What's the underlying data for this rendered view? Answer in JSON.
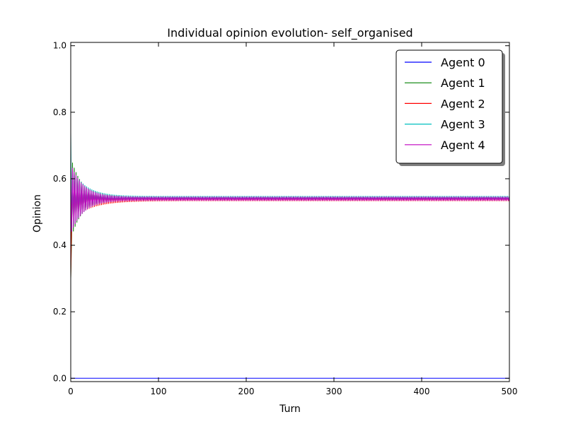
{
  "chart_data": {
    "type": "line",
    "title": "Individual opinion evolution- self_organised",
    "xlabel": "Turn",
    "ylabel": "Opinion",
    "xlim": [
      0,
      500
    ],
    "ylim": [
      -0.01,
      1.01
    ],
    "xticks": [
      0,
      100,
      200,
      300,
      400,
      500
    ],
    "yticks": [
      0.0,
      0.2,
      0.4,
      0.6,
      0.8,
      1.0
    ],
    "grid": false,
    "legend_position": "top-right",
    "series": [
      {
        "name": "Agent 0",
        "color": "#0000ff",
        "pattern": "constant",
        "start": 0.0,
        "steady": 0.0,
        "amp": 0.0,
        "decay": 1,
        "period": 2
      },
      {
        "name": "Agent 1",
        "color": "#008000",
        "pattern": "oscillate",
        "start": 0.3,
        "steady": 0.541,
        "amp": 0.12,
        "decay": 12,
        "period": 2
      },
      {
        "name": "Agent 2",
        "color": "#ff0000",
        "pattern": "oscillate",
        "start": 0.3,
        "steady": 0.539,
        "amp": 0.06,
        "decay": 22,
        "period": 2
      },
      {
        "name": "Agent 3",
        "color": "#00bfbf",
        "pattern": "oscillate",
        "start": 0.74,
        "steady": 0.542,
        "amp": 0.09,
        "decay": 16,
        "period": 2
      },
      {
        "name": "Agent 4",
        "color": "#bf00bf",
        "pattern": "oscillate",
        "start": 0.63,
        "steady": 0.54,
        "amp": 0.1,
        "decay": 14,
        "period": 2
      }
    ]
  }
}
